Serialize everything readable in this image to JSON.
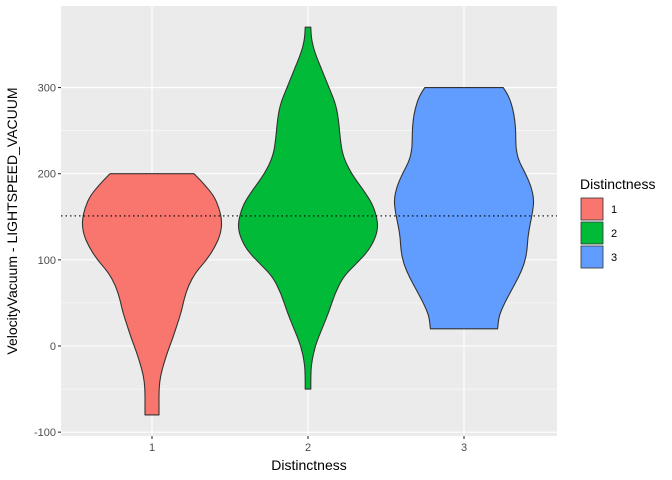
{
  "chart_data": {
    "type": "violin",
    "xlabel": "Distinctness",
    "ylabel": "VelocityVacuum - LIGHTSPEED_VACUUM",
    "categories": [
      "1",
      "2",
      "3"
    ],
    "ylim": [
      -100,
      370
    ],
    "yticks": [
      -100,
      0,
      100,
      200,
      300
    ],
    "reference_line": {
      "y": 151,
      "style": "dotted"
    },
    "legend": {
      "title": "Distinctness",
      "position": "right",
      "entries": [
        "1",
        "2",
        "3"
      ]
    },
    "colors": {
      "1": "#F8766D",
      "2": "#00BA38",
      "3": "#619CFF"
    },
    "panel_background": "#EBEBEB",
    "grid": true,
    "series": [
      {
        "category": "1",
        "min": -80,
        "max": 200,
        "profile": [
          {
            "y": 200,
            "w": 0.6
          },
          {
            "y": 190,
            "w": 0.72
          },
          {
            "y": 175,
            "w": 0.88
          },
          {
            "y": 160,
            "w": 0.96
          },
          {
            "y": 145,
            "w": 1.0
          },
          {
            "y": 130,
            "w": 0.98
          },
          {
            "y": 115,
            "w": 0.9
          },
          {
            "y": 100,
            "w": 0.78
          },
          {
            "y": 85,
            "w": 0.62
          },
          {
            "y": 70,
            "w": 0.52
          },
          {
            "y": 55,
            "w": 0.46
          },
          {
            "y": 40,
            "w": 0.42
          },
          {
            "y": 25,
            "w": 0.36
          },
          {
            "y": 10,
            "w": 0.3
          },
          {
            "y": -5,
            "w": 0.23
          },
          {
            "y": -20,
            "w": 0.17
          },
          {
            "y": -35,
            "w": 0.12
          },
          {
            "y": -50,
            "w": 0.1
          },
          {
            "y": -65,
            "w": 0.1
          },
          {
            "y": -80,
            "w": 0.1
          }
        ]
      },
      {
        "category": "2",
        "min": -50,
        "max": 370,
        "profile": [
          {
            "y": 370,
            "w": 0.04
          },
          {
            "y": 355,
            "w": 0.05
          },
          {
            "y": 340,
            "w": 0.1
          },
          {
            "y": 320,
            "w": 0.2
          },
          {
            "y": 300,
            "w": 0.3
          },
          {
            "y": 280,
            "w": 0.4
          },
          {
            "y": 260,
            "w": 0.44
          },
          {
            "y": 240,
            "w": 0.46
          },
          {
            "y": 220,
            "w": 0.5
          },
          {
            "y": 200,
            "w": 0.62
          },
          {
            "y": 180,
            "w": 0.8
          },
          {
            "y": 165,
            "w": 0.92
          },
          {
            "y": 150,
            "w": 0.98
          },
          {
            "y": 138,
            "w": 1.0
          },
          {
            "y": 125,
            "w": 0.96
          },
          {
            "y": 110,
            "w": 0.86
          },
          {
            "y": 95,
            "w": 0.68
          },
          {
            "y": 80,
            "w": 0.5
          },
          {
            "y": 60,
            "w": 0.38
          },
          {
            "y": 40,
            "w": 0.3
          },
          {
            "y": 20,
            "w": 0.2
          },
          {
            "y": 0,
            "w": 0.1
          },
          {
            "y": -20,
            "w": 0.05
          },
          {
            "y": -35,
            "w": 0.04
          },
          {
            "y": -50,
            "w": 0.04
          }
        ]
      },
      {
        "category": "3",
        "min": 20,
        "max": 300,
        "profile": [
          {
            "y": 300,
            "w": 0.56
          },
          {
            "y": 290,
            "w": 0.64
          },
          {
            "y": 275,
            "w": 0.7
          },
          {
            "y": 260,
            "w": 0.73
          },
          {
            "y": 245,
            "w": 0.74
          },
          {
            "y": 230,
            "w": 0.74
          },
          {
            "y": 215,
            "w": 0.78
          },
          {
            "y": 200,
            "w": 0.88
          },
          {
            "y": 185,
            "w": 0.96
          },
          {
            "y": 170,
            "w": 1.0
          },
          {
            "y": 155,
            "w": 0.98
          },
          {
            "y": 140,
            "w": 0.94
          },
          {
            "y": 125,
            "w": 0.91
          },
          {
            "y": 110,
            "w": 0.9
          },
          {
            "y": 95,
            "w": 0.86
          },
          {
            "y": 80,
            "w": 0.78
          },
          {
            "y": 65,
            "w": 0.68
          },
          {
            "y": 50,
            "w": 0.58
          },
          {
            "y": 35,
            "w": 0.5
          },
          {
            "y": 20,
            "w": 0.48
          }
        ]
      }
    ]
  }
}
